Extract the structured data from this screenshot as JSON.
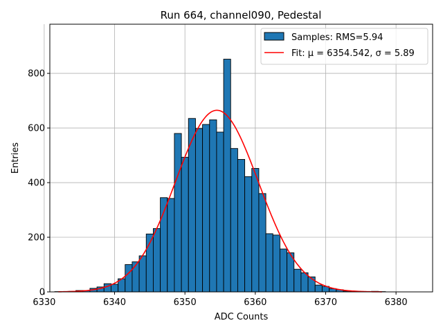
{
  "chart_data": {
    "type": "bar",
    "title": "Run 664, channel090, Pedestal",
    "xlabel": "ADC Counts",
    "ylabel": "Entries",
    "xlim": [
      6330.8,
      6385.2
    ],
    "ylim": [
      0,
      980
    ],
    "xticks": [
      6330,
      6340,
      6350,
      6360,
      6370,
      6380
    ],
    "yticks": [
      0,
      200,
      400,
      600,
      800
    ],
    "grid": true,
    "legend": "top-right",
    "bin_width": 1,
    "bins": [
      {
        "x": 6332,
        "y": 1
      },
      {
        "x": 6333,
        "y": 1
      },
      {
        "x": 6334,
        "y": 2
      },
      {
        "x": 6335,
        "y": 5
      },
      {
        "x": 6336,
        "y": 5
      },
      {
        "x": 6337,
        "y": 13
      },
      {
        "x": 6338,
        "y": 18
      },
      {
        "x": 6339,
        "y": 30
      },
      {
        "x": 6340,
        "y": 28
      },
      {
        "x": 6341,
        "y": 48
      },
      {
        "x": 6342,
        "y": 100
      },
      {
        "x": 6343,
        "y": 110
      },
      {
        "x": 6344,
        "y": 132
      },
      {
        "x": 6345,
        "y": 212
      },
      {
        "x": 6346,
        "y": 232
      },
      {
        "x": 6347,
        "y": 345
      },
      {
        "x": 6348,
        "y": 342
      },
      {
        "x": 6349,
        "y": 580
      },
      {
        "x": 6350,
        "y": 493
      },
      {
        "x": 6351,
        "y": 635
      },
      {
        "x": 6352,
        "y": 598
      },
      {
        "x": 6353,
        "y": 613
      },
      {
        "x": 6354,
        "y": 630
      },
      {
        "x": 6355,
        "y": 585
      },
      {
        "x": 6356,
        "y": 852
      },
      {
        "x": 6357,
        "y": 525
      },
      {
        "x": 6358,
        "y": 485
      },
      {
        "x": 6359,
        "y": 422
      },
      {
        "x": 6360,
        "y": 452
      },
      {
        "x": 6361,
        "y": 360
      },
      {
        "x": 6362,
        "y": 213
      },
      {
        "x": 6363,
        "y": 208
      },
      {
        "x": 6364,
        "y": 157
      },
      {
        "x": 6365,
        "y": 143
      },
      {
        "x": 6366,
        "y": 83
      },
      {
        "x": 6367,
        "y": 70
      },
      {
        "x": 6368,
        "y": 55
      },
      {
        "x": 6369,
        "y": 25
      },
      {
        "x": 6370,
        "y": 20
      },
      {
        "x": 6371,
        "y": 12
      },
      {
        "x": 6372,
        "y": 8
      },
      {
        "x": 6373,
        "y": 3
      },
      {
        "x": 6374,
        "y": 2
      },
      {
        "x": 6375,
        "y": 1
      },
      {
        "x": 6376,
        "y": 1
      },
      {
        "x": 6377,
        "y": 2
      },
      {
        "x": 6378,
        "y": 1
      }
    ],
    "fit": {
      "mu": 6354.542,
      "sigma": 5.89,
      "amplitude": 665,
      "x_range": [
        6332,
        6378
      ]
    },
    "series": [
      {
        "name": "Samples: RMS=5.94",
        "kind": "histogram",
        "color": "#1f77b4",
        "edge_color": "#000000"
      },
      {
        "name": "Fit: μ = 6354.542, σ = 5.89",
        "kind": "line",
        "color": "#ff0000"
      }
    ]
  }
}
